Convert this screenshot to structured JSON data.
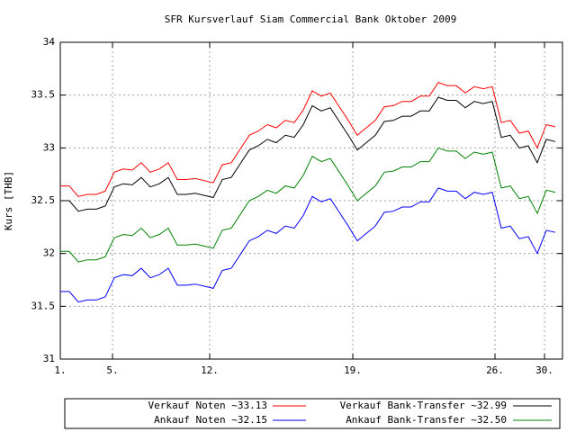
{
  "chart_data": {
    "type": "line",
    "title": "SFR Kursverlauf Siam Commercial Bank Oktober 2009",
    "y_label": "Kurs [THB]",
    "x": [
      0,
      1,
      2,
      3,
      4,
      5,
      6,
      7,
      8,
      9,
      10,
      11,
      12,
      13,
      14,
      15,
      16,
      17,
      18,
      19,
      20,
      21,
      22,
      23,
      24,
      25,
      26,
      27,
      28,
      29,
      30,
      31,
      32,
      33,
      34,
      35,
      36,
      37,
      38,
      39,
      40,
      41,
      42,
      43,
      44,
      45,
      46,
      47,
      48,
      49,
      50,
      51,
      52,
      53,
      54,
      55
    ],
    "xlim": [
      0,
      55.8
    ],
    "xticks": [
      {
        "value": 0,
        "label": "1."
      },
      {
        "value": 5.8,
        "label": "5."
      },
      {
        "value": 16.6,
        "label": "12."
      },
      {
        "value": 32.5,
        "label": "19."
      },
      {
        "value": 48.3,
        "label": "26."
      },
      {
        "value": 53.8,
        "label": "30."
      }
    ],
    "ylim": [
      31,
      34
    ],
    "yticks": [
      31,
      31.5,
      32,
      32.5,
      33,
      33.5,
      34
    ],
    "grid": true,
    "legend": "bottom",
    "series": [
      {
        "name": "Verkauf Noten ~33.13",
        "color": "#ff0000",
        "values": [
          32.64,
          32.64,
          32.54,
          32.56,
          32.56,
          32.59,
          32.77,
          32.8,
          32.79,
          32.86,
          32.77,
          32.8,
          32.86,
          32.7,
          32.7,
          32.71,
          32.69,
          32.67,
          32.84,
          32.86,
          32.99,
          33.12,
          33.16,
          33.22,
          33.19,
          33.26,
          33.24,
          33.36,
          33.54,
          33.49,
          33.52,
          33.39,
          33.26,
          33.12,
          33.19,
          33.26,
          33.39,
          33.4,
          33.44,
          33.44,
          33.49,
          33.49,
          33.62,
          33.59,
          33.59,
          33.52,
          33.58,
          33.56,
          33.58,
          33.24,
          33.26,
          33.14,
          33.16,
          33.0,
          33.22,
          33.2
        ]
      },
      {
        "name": "Verkauf Bank-Transfer ~32.99",
        "color": "#000000",
        "values": [
          32.5,
          32.5,
          32.4,
          32.42,
          32.42,
          32.45,
          32.63,
          32.66,
          32.65,
          32.72,
          32.63,
          32.66,
          32.72,
          32.56,
          32.56,
          32.57,
          32.55,
          32.53,
          32.7,
          32.72,
          32.85,
          32.98,
          33.02,
          33.08,
          33.05,
          33.12,
          33.1,
          33.22,
          33.4,
          33.35,
          33.38,
          33.25,
          33.12,
          32.98,
          33.05,
          33.12,
          33.25,
          33.26,
          33.3,
          33.3,
          33.35,
          33.35,
          33.48,
          33.45,
          33.45,
          33.38,
          33.44,
          33.42,
          33.44,
          33.1,
          33.12,
          33.0,
          33.02,
          32.86,
          33.08,
          33.06
        ]
      },
      {
        "name": "Ankauf Noten ~32.15",
        "color": "#0000ff",
        "values": [
          31.64,
          31.64,
          31.54,
          31.56,
          31.56,
          31.59,
          31.77,
          31.8,
          31.79,
          31.86,
          31.77,
          31.8,
          31.86,
          31.7,
          31.7,
          31.71,
          31.69,
          31.67,
          31.84,
          31.86,
          31.99,
          32.12,
          32.16,
          32.22,
          32.19,
          32.26,
          32.24,
          32.36,
          32.54,
          32.49,
          32.52,
          32.39,
          32.26,
          32.12,
          32.19,
          32.26,
          32.39,
          32.4,
          32.44,
          32.44,
          32.49,
          32.49,
          32.62,
          32.59,
          32.59,
          32.52,
          32.58,
          32.56,
          32.58,
          32.24,
          32.26,
          32.14,
          32.16,
          32.0,
          32.22,
          32.2
        ]
      },
      {
        "name": "Ankauf Bank-Transfer ~32.50",
        "color": "#008000",
        "values": [
          32.02,
          32.02,
          31.92,
          31.94,
          31.94,
          31.97,
          32.15,
          32.18,
          32.17,
          32.24,
          32.15,
          32.18,
          32.24,
          32.08,
          32.08,
          32.09,
          32.07,
          32.05,
          32.22,
          32.24,
          32.37,
          32.5,
          32.54,
          32.6,
          32.57,
          32.64,
          32.62,
          32.74,
          32.92,
          32.87,
          32.9,
          32.77,
          32.64,
          32.5,
          32.57,
          32.64,
          32.77,
          32.78,
          32.82,
          32.82,
          32.87,
          32.87,
          33.0,
          32.97,
          32.97,
          32.9,
          32.96,
          32.94,
          32.96,
          32.62,
          32.64,
          32.52,
          32.54,
          32.38,
          32.6,
          32.58
        ]
      }
    ]
  }
}
